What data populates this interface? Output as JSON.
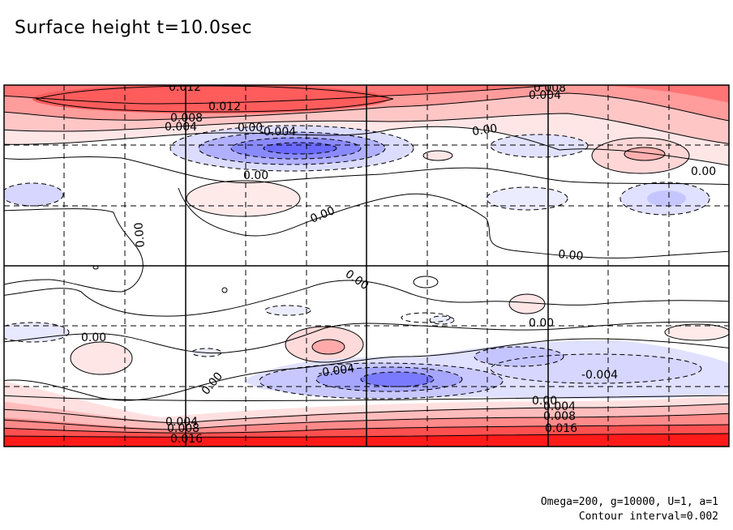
{
  "chart_data": {
    "type": "contour",
    "title": "Surface height t=10.0sec",
    "variable": "Surface height",
    "time_label": "t=10.0sec",
    "contour_interval": 0.002,
    "grid": true,
    "colors": {
      "positive_max": "#ff0000",
      "positive_light": "#ffe8e8",
      "negative_max": "#5a5aff",
      "negative_light": "#eaeaff",
      "contour": "#000000",
      "grid": "#000000"
    },
    "contour_labels": [
      "0.012",
      "0.012",
      "0.008",
      "0.004",
      "0.00",
      "-0.004",
      "0.00",
      "0.008",
      "0.004",
      "0.00",
      "0.00",
      "0.00",
      "0.00",
      "0.00",
      "0.00",
      "0.00",
      "0.00",
      "-0.004",
      "0.00",
      "-0.004",
      "0.004",
      "0.008",
      "0.016",
      "0.004",
      "0.008",
      "0.016",
      "0.00"
    ]
  },
  "footer": {
    "params": "Omega=200, g=10000, U=1, a=1",
    "interval": "Contour interval=0.002"
  }
}
